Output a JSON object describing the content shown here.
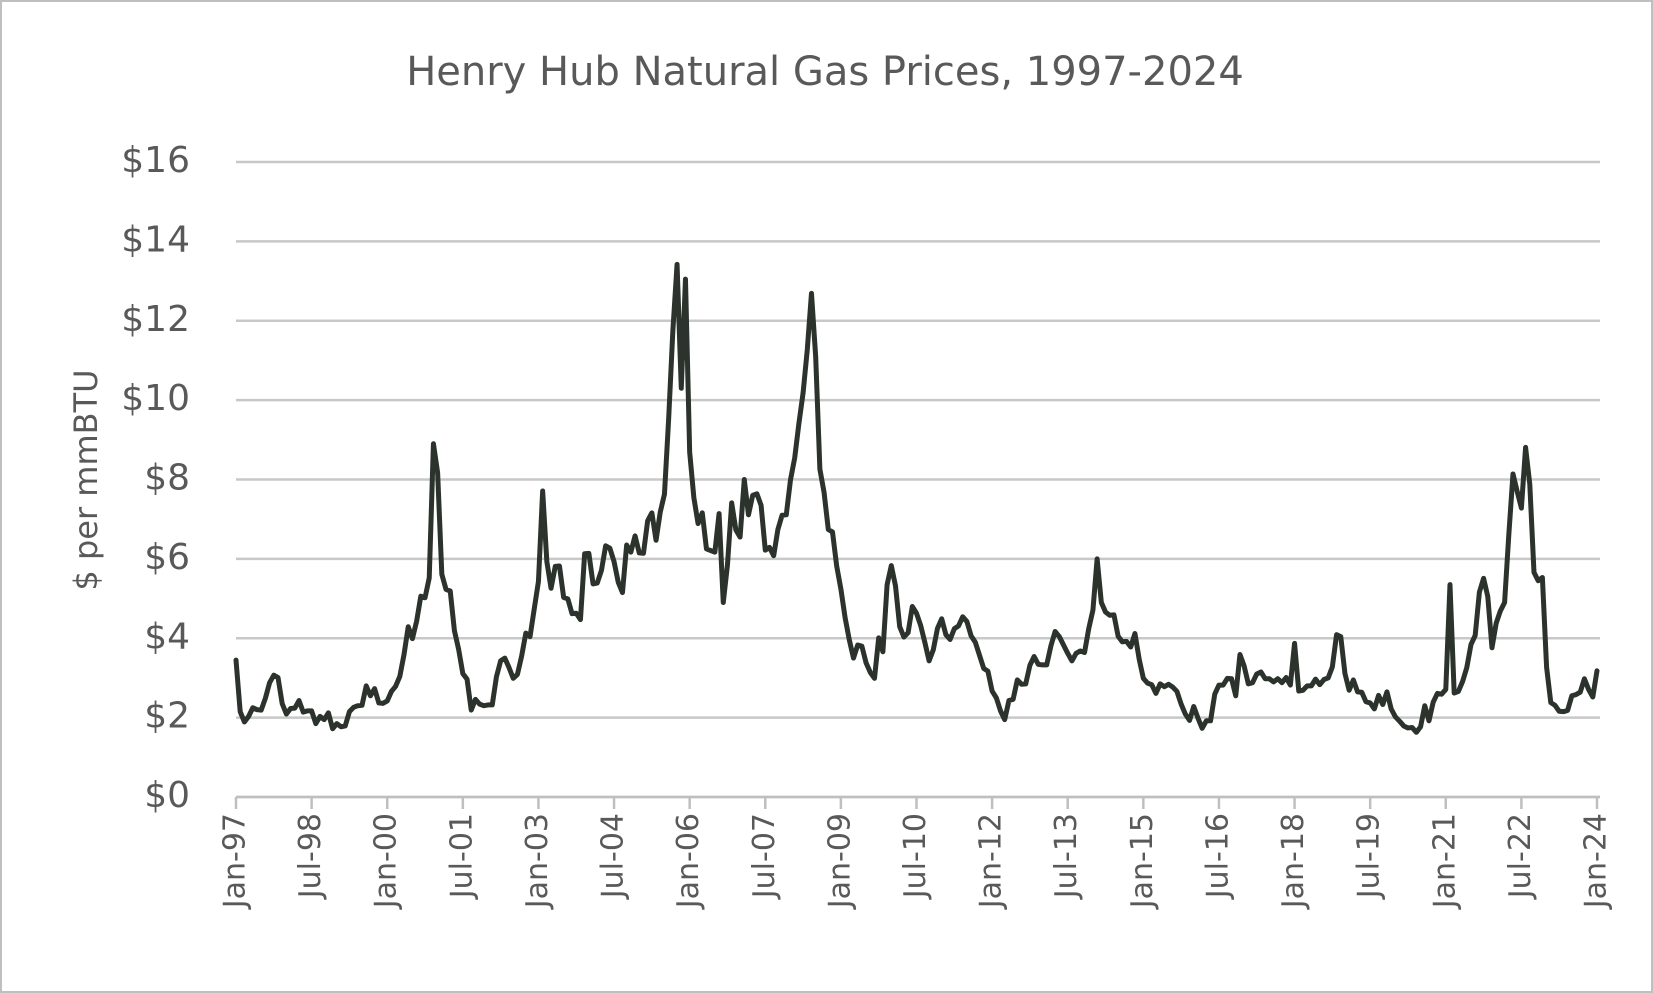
{
  "chart_data": {
    "type": "line",
    "title": "Henry Hub Natural Gas Prices, 1997-2024",
    "y_label": "$ per mmBTU",
    "color": "#2b332c",
    "grid": true,
    "ylim": [
      0,
      16
    ],
    "yticks": [
      {
        "value": 0,
        "label": "$0"
      },
      {
        "value": 2,
        "label": "$2"
      },
      {
        "value": 4,
        "label": "$4"
      },
      {
        "value": 6,
        "label": "$6"
      },
      {
        "value": 8,
        "label": "$8"
      },
      {
        "value": 10,
        "label": "$10"
      },
      {
        "value": 12,
        "label": "$12"
      },
      {
        "value": 14,
        "label": "$14"
      },
      {
        "value": 16,
        "label": "$16"
      }
    ],
    "categories": [
      "Jan-97",
      null,
      null,
      null,
      null,
      null,
      null,
      null,
      null,
      null,
      null,
      null,
      null,
      null,
      null,
      null,
      null,
      null,
      "Jul-98",
      null,
      null,
      null,
      null,
      null,
      null,
      null,
      null,
      null,
      null,
      null,
      null,
      null,
      null,
      null,
      null,
      null,
      "Jan-00",
      null,
      null,
      null,
      null,
      null,
      null,
      null,
      null,
      null,
      null,
      null,
      null,
      null,
      null,
      null,
      null,
      null,
      "Jul-01",
      null,
      null,
      null,
      null,
      null,
      null,
      null,
      null,
      null,
      null,
      null,
      null,
      null,
      null,
      null,
      null,
      null,
      "Jan-03",
      null,
      null,
      null,
      null,
      null,
      null,
      null,
      null,
      null,
      null,
      null,
      null,
      null,
      null,
      null,
      null,
      null,
      "Jul-04",
      null,
      null,
      null,
      null,
      null,
      null,
      null,
      null,
      null,
      null,
      null,
      null,
      null,
      null,
      null,
      null,
      null,
      "Jan-06",
      null,
      null,
      null,
      null,
      null,
      null,
      null,
      null,
      null,
      null,
      null,
      null,
      null,
      null,
      null,
      null,
      null,
      "Jul-07",
      null,
      null,
      null,
      null,
      null,
      null,
      null,
      null,
      null,
      null,
      null,
      null,
      null,
      null,
      null,
      null,
      null,
      "Jan-09",
      null,
      null,
      null,
      null,
      null,
      null,
      null,
      null,
      null,
      null,
      null,
      null,
      null,
      null,
      null,
      null,
      null,
      "Jul-10",
      null,
      null,
      null,
      null,
      null,
      null,
      null,
      null,
      null,
      null,
      null,
      null,
      null,
      null,
      null,
      null,
      null,
      "Jan-12",
      null,
      null,
      null,
      null,
      null,
      null,
      null,
      null,
      null,
      null,
      null,
      null,
      null,
      null,
      null,
      null,
      null,
      "Jul-13",
      null,
      null,
      null,
      null,
      null,
      null,
      null,
      null,
      null,
      null,
      null,
      null,
      null,
      null,
      null,
      null,
      null,
      "Jan-15",
      null,
      null,
      null,
      null,
      null,
      null,
      null,
      null,
      null,
      null,
      null,
      null,
      null,
      null,
      null,
      null,
      null,
      "Jul-16",
      null,
      null,
      null,
      null,
      null,
      null,
      null,
      null,
      null,
      null,
      null,
      null,
      null,
      null,
      null,
      null,
      null,
      "Jan-18",
      null,
      null,
      null,
      null,
      null,
      null,
      null,
      null,
      null,
      null,
      null,
      null,
      null,
      null,
      null,
      null,
      null,
      "Jul-19",
      null,
      null,
      null,
      null,
      null,
      null,
      null,
      null,
      null,
      null,
      null,
      null,
      null,
      null,
      null,
      null,
      null,
      "Jan-21",
      null,
      null,
      null,
      null,
      null,
      null,
      null,
      null,
      null,
      null,
      null,
      null,
      null,
      null,
      null,
      null,
      null,
      "Jul-22",
      null,
      null,
      null,
      null,
      null,
      null,
      null,
      null,
      null,
      null,
      null,
      null,
      null,
      null,
      null,
      null,
      null,
      "Jan-24"
    ],
    "values": [
      3.45,
      2.15,
      1.89,
      2.03,
      2.25,
      2.2,
      2.19,
      2.49,
      2.88,
      3.07,
      3.01,
      2.35,
      2.09,
      2.23,
      2.24,
      2.43,
      2.14,
      2.17,
      2.17,
      1.85,
      2.03,
      1.95,
      2.12,
      1.72,
      1.85,
      1.77,
      1.79,
      2.15,
      2.26,
      2.3,
      2.31,
      2.8,
      2.55,
      2.73,
      2.37,
      2.36,
      2.42,
      2.66,
      2.79,
      3.04,
      3.59,
      4.29,
      3.99,
      4.43,
      5.06,
      5.02,
      5.52,
      8.9,
      8.17,
      5.61,
      5.23,
      5.19,
      4.19,
      3.72,
      3.11,
      2.97,
      2.19,
      2.46,
      2.34,
      2.3,
      2.32,
      2.32,
      3.03,
      3.43,
      3.5,
      3.26,
      2.99,
      3.09,
      3.55,
      4.13,
      4.04,
      4.74,
      5.43,
      7.71,
      5.93,
      5.26,
      5.81,
      5.82,
      5.03,
      4.99,
      4.62,
      4.63,
      4.47,
      6.13,
      6.14,
      5.37,
      5.39,
      5.71,
      6.33,
      6.27,
      5.93,
      5.41,
      5.15,
      6.35,
      6.17,
      6.58,
      6.15,
      6.14,
      6.96,
      7.16,
      6.47,
      7.18,
      7.63,
      9.53,
      11.75,
      13.42,
      10.3,
      13.05,
      8.69,
      7.54,
      6.89,
      7.16,
      6.25,
      6.21,
      6.17,
      7.14,
      4.9,
      5.85,
      7.41,
      6.73,
      6.55,
      8.0,
      7.11,
      7.6,
      7.64,
      7.35,
      6.22,
      6.29,
      6.08,
      6.74,
      7.1,
      7.11,
      7.99,
      8.54,
      9.41,
      10.18,
      11.27,
      12.69,
      11.09,
      8.26,
      7.67,
      6.74,
      6.68,
      5.82,
      5.24,
      4.52,
      3.96,
      3.5,
      3.83,
      3.8,
      3.38,
      3.14,
      2.99,
      4.01,
      3.66,
      5.35,
      5.83,
      5.32,
      4.29,
      4.03,
      4.14,
      4.8,
      4.63,
      4.32,
      3.89,
      3.43,
      3.71,
      4.25,
      4.49,
      4.09,
      3.97,
      4.24,
      4.31,
      4.54,
      4.42,
      4.06,
      3.9,
      3.57,
      3.24,
      3.17,
      2.67,
      2.5,
      2.17,
      1.95,
      2.43,
      2.46,
      2.95,
      2.84,
      2.85,
      3.32,
      3.54,
      3.34,
      3.33,
      3.33,
      3.81,
      4.17,
      4.04,
      3.83,
      3.62,
      3.43,
      3.62,
      3.68,
      3.64,
      4.24,
      4.71,
      6.0,
      4.9,
      4.66,
      4.58,
      4.59,
      4.05,
      3.91,
      3.92,
      3.78,
      4.12,
      3.48,
      2.99,
      2.87,
      2.83,
      2.61,
      2.85,
      2.78,
      2.84,
      2.77,
      2.66,
      2.34,
      2.09,
      1.93,
      2.28,
      1.99,
      1.73,
      1.92,
      1.92,
      2.59,
      2.82,
      2.82,
      2.99,
      2.98,
      2.55,
      3.59,
      3.3,
      2.85,
      2.88,
      3.1,
      3.15,
      2.98,
      2.98,
      2.9,
      2.98,
      2.88,
      3.01,
      2.82,
      3.87,
      2.67,
      2.69,
      2.8,
      2.8,
      2.97,
      2.83,
      2.96,
      3.0,
      3.28,
      4.09,
      4.04,
      3.11,
      2.69,
      2.95,
      2.65,
      2.64,
      2.4,
      2.37,
      2.22,
      2.56,
      2.33,
      2.65,
      2.22,
      2.02,
      1.91,
      1.79,
      1.74,
      1.75,
      1.63,
      1.77,
      2.3,
      1.92,
      2.39,
      2.61,
      2.59,
      2.71,
      5.35,
      2.62,
      2.66,
      2.91,
      3.26,
      3.84,
      4.07,
      5.16,
      5.51,
      5.05,
      3.76,
      4.38,
      4.69,
      4.9,
      6.6,
      8.14,
      7.7,
      7.28,
      8.81,
      7.88,
      5.66,
      5.45,
      5.53,
      3.27,
      2.38,
      2.31,
      2.16,
      2.15,
      2.18,
      2.55,
      2.58,
      2.64,
      2.98,
      2.71,
      2.52,
      3.18
    ]
  }
}
